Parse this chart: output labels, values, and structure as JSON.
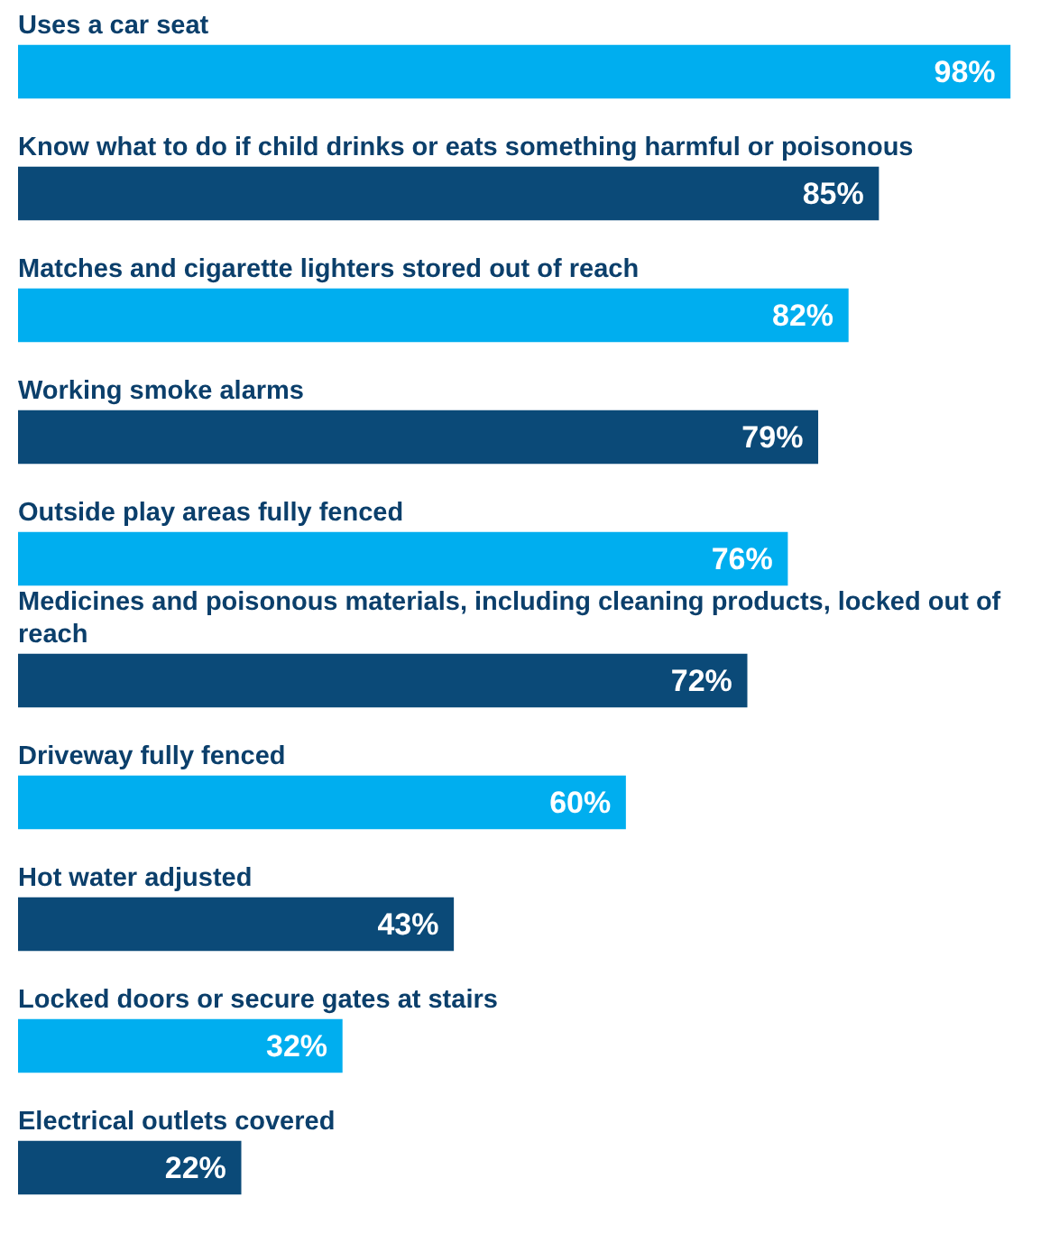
{
  "chart_data": {
    "type": "bar",
    "orientation": "horizontal",
    "categories": [
      "Uses a car seat",
      "Know what to do if child drinks or eats something harmful or poisonous",
      "Matches and cigarette lighters stored out of reach",
      "Working smoke alarms",
      "Outside play areas fully fenced",
      "Medicines and poisonous materials, including cleaning products, locked out of reach",
      "Driveway fully fenced",
      "Hot water adjusted",
      "Locked doors or secure gates at stairs",
      "Electrical outlets covered"
    ],
    "values": [
      98,
      85,
      82,
      79,
      76,
      72,
      60,
      43,
      32,
      22
    ],
    "value_labels": [
      "98%",
      "85%",
      "82%",
      "79%",
      "76%",
      "72%",
      "60%",
      "43%",
      "32%",
      "22%"
    ],
    "colors": [
      "#00aeef",
      "#0b4a78",
      "#00aeef",
      "#0b4a78",
      "#00aeef",
      "#0b4a78",
      "#00aeef",
      "#0b4a78",
      "#00aeef",
      "#0b4a78"
    ],
    "grid": false,
    "legend": false
  }
}
